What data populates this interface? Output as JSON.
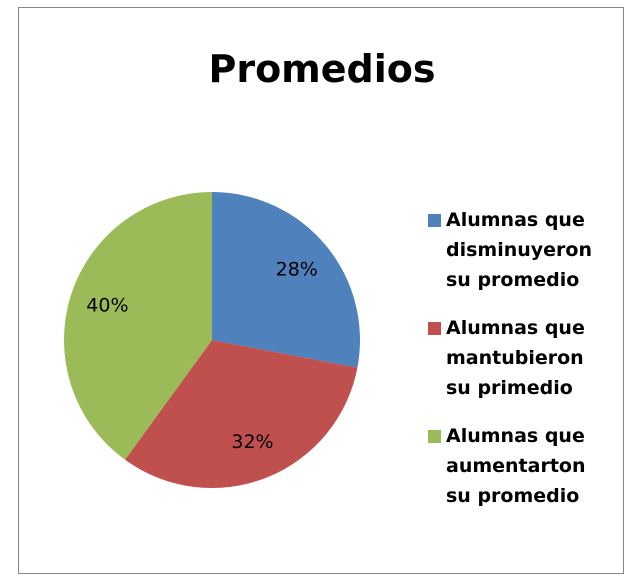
{
  "chart_data": {
    "type": "pie",
    "title": "Promedios",
    "categories": [
      "Alumnas que disminuyeron su promedio",
      "Alumnas que mantubieron su primedio",
      "Alumnas que aumentarton su promedio"
    ],
    "values": [
      28,
      32,
      40
    ],
    "value_labels": [
      "28%",
      "32%",
      "40%"
    ],
    "colors": [
      "#4f81bd",
      "#c0504d",
      "#9bbb59"
    ],
    "legend": "right"
  }
}
